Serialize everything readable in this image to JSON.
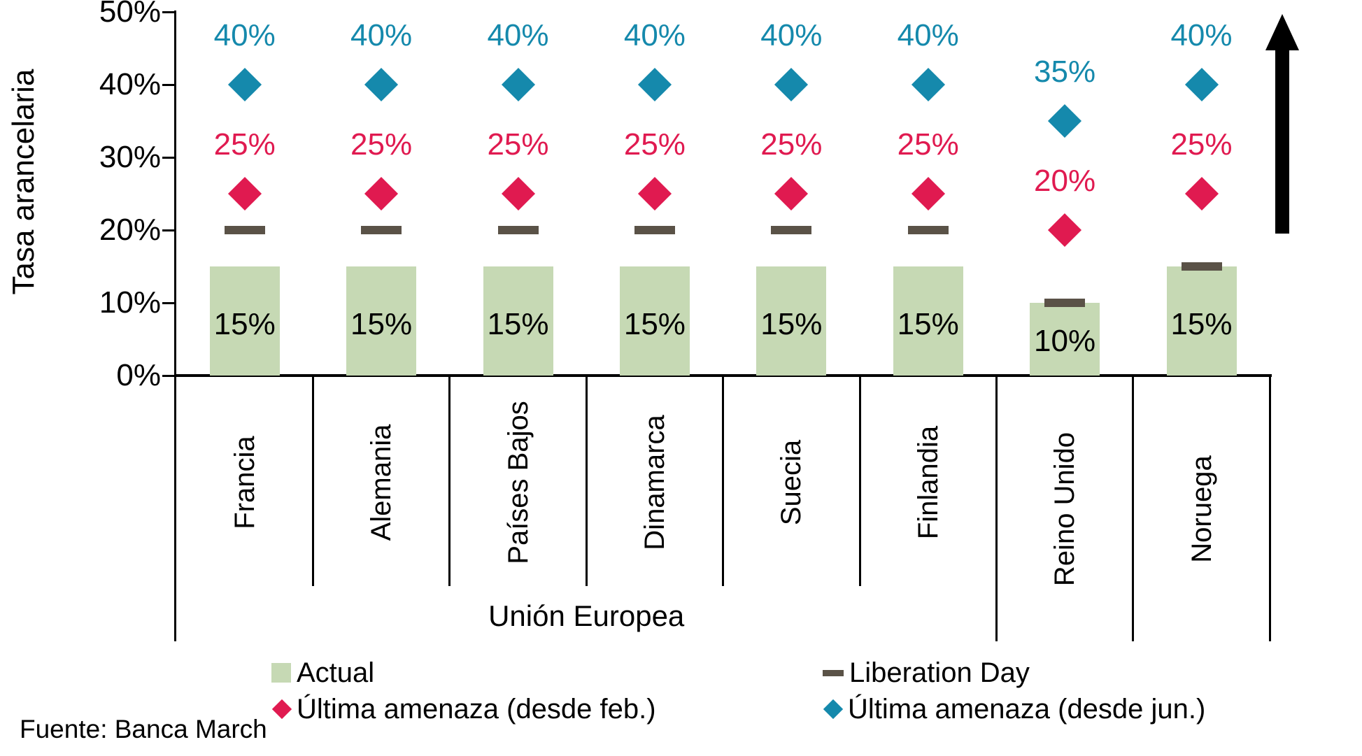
{
  "source_note": "Fuente: Banca March",
  "colors": {
    "actual_bar": "#c6d9b4",
    "liberation_dash": "#5a5247",
    "threat_feb": "#e01a50",
    "threat_jun": "#1589ac",
    "axis": "#000000",
    "arrow": "#000000"
  },
  "chart_data": {
    "type": "bar",
    "title": "",
    "xlabel": "",
    "ylabel": "Tasa arancelaria",
    "ylim": [
      0,
      50
    ],
    "y_ticks": [
      {
        "value": 0,
        "label": "0%"
      },
      {
        "value": 10,
        "label": "10%"
      },
      {
        "value": 20,
        "label": "20%"
      },
      {
        "value": 30,
        "label": "30%"
      },
      {
        "value": 40,
        "label": "40%"
      },
      {
        "value": 50,
        "label": "50%"
      }
    ],
    "grid": false,
    "legend_position": "bottom",
    "categories": [
      "Francia",
      "Alemania",
      "Países Bajos",
      "Dinamarca",
      "Suecia",
      "Finlandia",
      "Reino Unido",
      "Noruega"
    ],
    "category_group": {
      "label": "Unión Europea",
      "from_index": 0,
      "to_index": 5
    },
    "series": [
      {
        "name": "Actual",
        "marker": "bar",
        "color": "#c6d9b4",
        "values": [
          15,
          15,
          15,
          15,
          15,
          15,
          10,
          15
        ],
        "labels": [
          "15%",
          "15%",
          "15%",
          "15%",
          "15%",
          "15%",
          "10%",
          "15%"
        ]
      },
      {
        "name": "Liberation Day",
        "marker": "dash",
        "color": "#5a5247",
        "values": [
          20,
          20,
          20,
          20,
          20,
          20,
          10,
          15
        ],
        "labels": null
      },
      {
        "name": "Última amenaza (desde feb.)",
        "marker": "diamond",
        "color": "#e01a50",
        "values": [
          25,
          25,
          25,
          25,
          25,
          25,
          20,
          25
        ],
        "labels": [
          "25%",
          "25%",
          "25%",
          "25%",
          "25%",
          "25%",
          "20%",
          "25%"
        ]
      },
      {
        "name": "Última amenaza (desde jun.)",
        "marker": "diamond",
        "color": "#1589ac",
        "values": [
          40,
          40,
          40,
          40,
          40,
          40,
          35,
          40
        ],
        "labels": [
          "40%",
          "40%",
          "40%",
          "40%",
          "40%",
          "40%",
          "35%",
          "40%"
        ]
      }
    ],
    "annotations": [
      {
        "type": "arrow-up",
        "description": "upward arrow at right side of plot",
        "color": "#000000"
      }
    ]
  },
  "legend": {
    "column1": [
      {
        "series_index": 0
      },
      {
        "series_index": 2
      }
    ],
    "column2": [
      {
        "series_index": 1
      },
      {
        "series_index": 3
      }
    ]
  }
}
